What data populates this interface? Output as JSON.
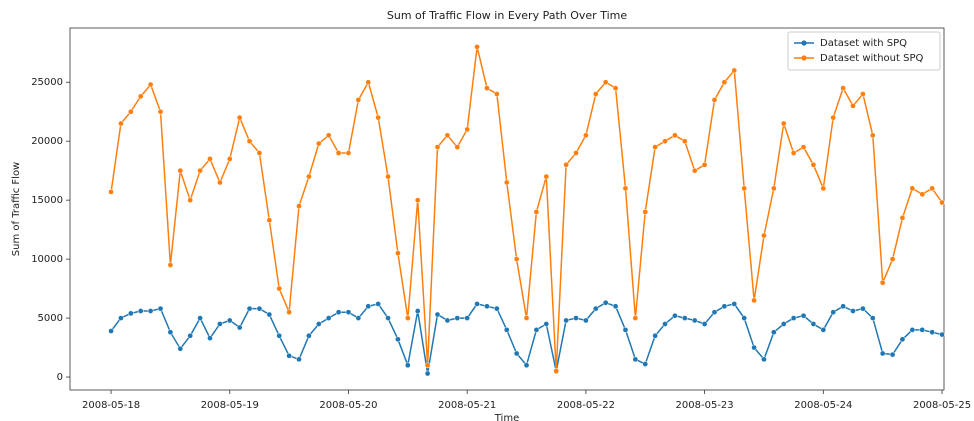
{
  "chart_data": {
    "type": "line",
    "title": "Sum of Traffic Flow in Every Path Over Time",
    "xlabel": "Time",
    "ylabel": "Sum of Traffic Flow",
    "x": [
      "2008-05-18 00:00",
      "2008-05-18 02:00",
      "2008-05-18 04:00",
      "2008-05-18 06:00",
      "2008-05-18 08:00",
      "2008-05-18 10:00",
      "2008-05-18 12:00",
      "2008-05-18 14:00",
      "2008-05-18 16:00",
      "2008-05-18 18:00",
      "2008-05-18 20:00",
      "2008-05-18 22:00",
      "2008-05-19 00:00",
      "2008-05-19 02:00",
      "2008-05-19 04:00",
      "2008-05-19 06:00",
      "2008-05-19 08:00",
      "2008-05-19 10:00",
      "2008-05-19 12:00",
      "2008-05-19 14:00",
      "2008-05-19 16:00",
      "2008-05-19 18:00",
      "2008-05-19 20:00",
      "2008-05-19 22:00",
      "2008-05-20 00:00",
      "2008-05-20 02:00",
      "2008-05-20 04:00",
      "2008-05-20 06:00",
      "2008-05-20 08:00",
      "2008-05-20 10:00",
      "2008-05-20 12:00",
      "2008-05-20 14:00",
      "2008-05-20 16:00",
      "2008-05-20 18:00",
      "2008-05-20 20:00",
      "2008-05-20 22:00",
      "2008-05-21 00:00",
      "2008-05-21 02:00",
      "2008-05-21 04:00",
      "2008-05-21 06:00",
      "2008-05-21 08:00",
      "2008-05-21 10:00",
      "2008-05-21 12:00",
      "2008-05-21 14:00",
      "2008-05-21 16:00",
      "2008-05-21 18:00",
      "2008-05-21 20:00",
      "2008-05-21 22:00",
      "2008-05-22 00:00",
      "2008-05-22 02:00",
      "2008-05-22 04:00",
      "2008-05-22 06:00",
      "2008-05-22 08:00",
      "2008-05-22 10:00",
      "2008-05-22 12:00",
      "2008-05-22 14:00",
      "2008-05-22 16:00",
      "2008-05-22 18:00",
      "2008-05-22 20:00",
      "2008-05-22 22:00",
      "2008-05-23 00:00",
      "2008-05-23 02:00",
      "2008-05-23 04:00",
      "2008-05-23 06:00",
      "2008-05-23 08:00",
      "2008-05-23 10:00",
      "2008-05-23 12:00",
      "2008-05-23 14:00",
      "2008-05-23 16:00",
      "2008-05-23 18:00",
      "2008-05-23 20:00",
      "2008-05-23 22:00",
      "2008-05-24 00:00",
      "2008-05-24 02:00",
      "2008-05-24 04:00",
      "2008-05-24 06:00",
      "2008-05-24 08:00",
      "2008-05-24 10:00",
      "2008-05-24 12:00",
      "2008-05-24 14:00",
      "2008-05-24 16:00",
      "2008-05-24 18:00",
      "2008-05-24 20:00",
      "2008-05-24 22:00",
      "2008-05-25 00:00"
    ],
    "series": [
      {
        "name": "Dataset with SPQ",
        "color": "#1f77b4",
        "values": [
          3900,
          5000,
          5400,
          5600,
          5600,
          5800,
          3800,
          2400,
          3500,
          5000,
          3300,
          4500,
          4800,
          4200,
          5800,
          5800,
          5300,
          3500,
          1800,
          1500,
          3500,
          4500,
          5000,
          5500,
          5500,
          5000,
          6000,
          6200,
          5000,
          3200,
          1000,
          5600,
          300,
          5300,
          4800,
          5000,
          5000,
          6200,
          6000,
          5800,
          4000,
          2000,
          1000,
          4000,
          4500,
          500,
          4800,
          5000,
          4800,
          5800,
          6300,
          6000,
          4000,
          1500,
          1100,
          3500,
          4500,
          5200,
          5000,
          4800,
          4500,
          5500,
          6000,
          6200,
          5000,
          2500,
          1500,
          3800,
          4500,
          5000,
          5200,
          4500,
          4000,
          5500,
          6000,
          5600,
          5800,
          5000,
          2000,
          1900,
          3200,
          4000,
          4000,
          3800,
          3600
        ]
      },
      {
        "name": "Dataset without SPQ",
        "color": "#ff7f0e",
        "values": [
          15700,
          21500,
          22500,
          23800,
          24800,
          22500,
          9500,
          17500,
          15000,
          17500,
          18500,
          16500,
          18500,
          22000,
          20000,
          19000,
          13300,
          7500,
          5500,
          14500,
          17000,
          19800,
          20500,
          19000,
          19000,
          23500,
          25000,
          22000,
          17000,
          10500,
          5000,
          15000,
          1000,
          19500,
          20500,
          19500,
          21000,
          28000,
          24500,
          24000,
          16500,
          10000,
          5000,
          14000,
          17000,
          500,
          18000,
          19000,
          20500,
          24000,
          25000,
          24500,
          16000,
          5000,
          14000,
          19500,
          20000,
          20500,
          20000,
          17500,
          18000,
          23500,
          25000,
          26000,
          16000,
          6500,
          12000,
          16000,
          21500,
          19000,
          19500,
          18000,
          16000,
          22000,
          24500,
          23000,
          24000,
          20500,
          8000,
          10000,
          13500,
          16000,
          15500,
          16000,
          14800
        ]
      }
    ],
    "xlim": [
      "2008-05-17 15:42",
      "2008-05-25 00:24"
    ],
    "xticks": [
      "2008-05-18",
      "2008-05-19",
      "2008-05-20",
      "2008-05-21",
      "2008-05-22",
      "2008-05-23",
      "2008-05-24",
      "2008-05-25"
    ],
    "ylim": [
      -1100,
      29600
    ],
    "yticks": [
      0,
      5000,
      10000,
      15000,
      20000,
      25000
    ],
    "grid": false,
    "legend": "upper right"
  }
}
